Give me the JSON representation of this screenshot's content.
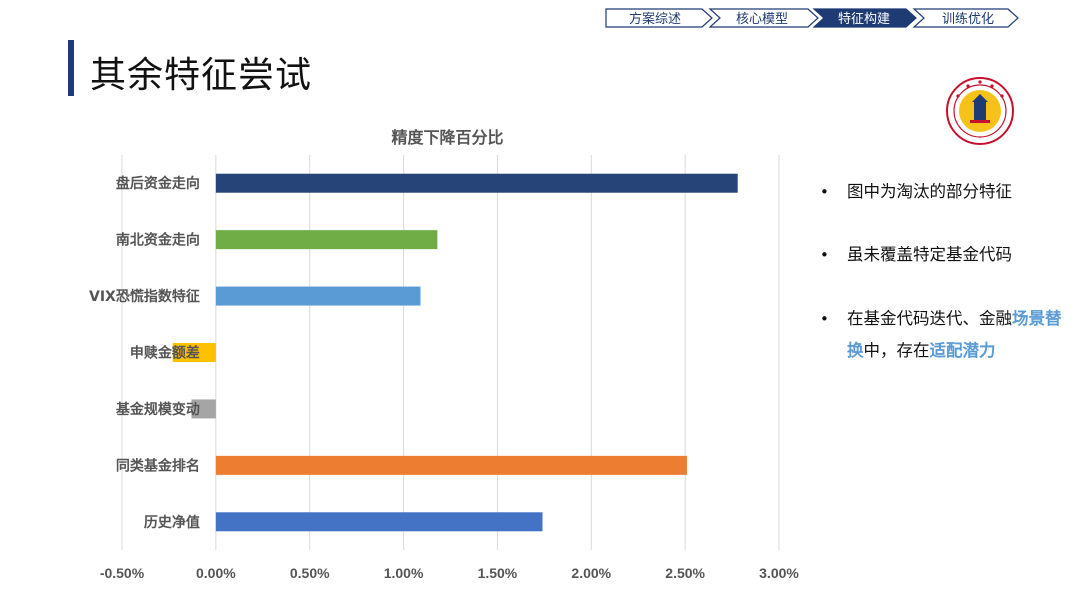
{
  "nav": {
    "items": [
      {
        "label": "方案综述",
        "active": false
      },
      {
        "label": "核心模型",
        "active": false
      },
      {
        "label": "特征构建",
        "active": true
      },
      {
        "label": "训练优化",
        "active": false
      }
    ],
    "colors": {
      "active_fill": "#1f3b73",
      "active_text": "#ffffff",
      "inactive_text": "#1f3b73",
      "border": "#1f3b73"
    }
  },
  "page_title": "其余特征尝试",
  "logo": {
    "name": "university-seal",
    "color": "#c8102e"
  },
  "bullets": {
    "b1": "图中为淘汰的部分特征",
    "b2": "虽未覆盖特定基金代码",
    "b3_part1": "在基金代码迭代、金融",
    "b3_hl1": "场景替换",
    "b3_part2": "中，存在",
    "b3_hl2": "适配潜力"
  },
  "chart_data": {
    "type": "bar",
    "orientation": "horizontal",
    "title": "精度下降百分比",
    "categories": [
      "盘后资金走向",
      "南北资金走向",
      "VIX恐慌指数特征",
      "申赎金额差",
      "基金规模变动",
      "同类基金排名",
      "历史净值"
    ],
    "values": [
      2.78,
      1.18,
      1.09,
      -0.23,
      -0.13,
      2.51,
      1.74
    ],
    "colors": [
      "#264478",
      "#70ad47",
      "#5b9bd5",
      "#ffc000",
      "#a5a5a5",
      "#ed7d31",
      "#4472c4"
    ],
    "xlim": [
      -0.5,
      3.0
    ],
    "xticks": [
      "-0.50%",
      "0.00%",
      "0.50%",
      "1.00%",
      "1.50%",
      "2.00%",
      "2.50%",
      "3.00%"
    ],
    "xtick_values": [
      -0.5,
      0,
      0.5,
      1.0,
      1.5,
      2.0,
      2.5,
      3.0
    ],
    "value_unit": "%",
    "grid": true,
    "legend": "none"
  }
}
